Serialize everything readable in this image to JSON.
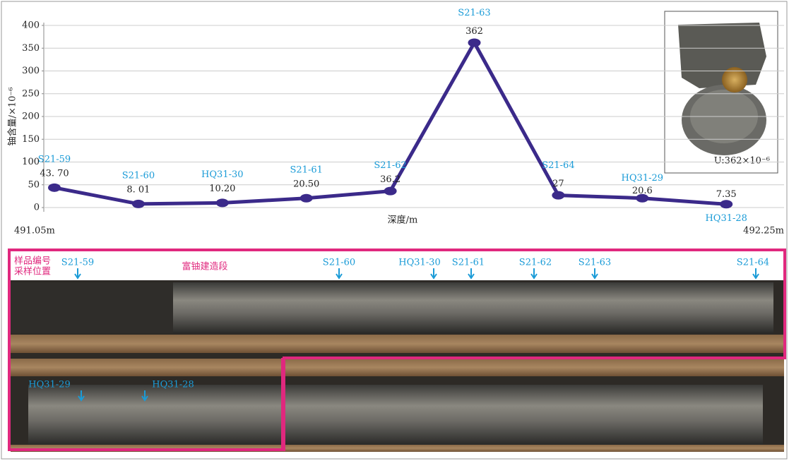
{
  "chart_data": {
    "type": "line",
    "y_label": "铀含量/×10⁻⁶",
    "x_label": "深度/m",
    "x_start_label": "491.05m",
    "x_end_label": "492.25m",
    "categories": [
      "S21-59",
      "S21-60",
      "HQ31-30",
      "S21-61",
      "S21-62",
      "S21-63",
      "S21-64",
      "HQ31-29",
      "HQ31-28"
    ],
    "series": [
      {
        "name": "铀含量",
        "color": "#3b2a8a",
        "values": [
          43.7,
          8.01,
          10.2,
          20.5,
          36.2,
          362,
          27,
          20.6,
          7.35
        ],
        "value_labels": [
          "43. 70",
          "8. 01",
          "10.20",
          "20.50",
          "36.2",
          "362",
          "27",
          "20.6",
          "7.35"
        ]
      }
    ],
    "ylim": [
      0,
      400
    ],
    "yticks": [
      0,
      50,
      100,
      150,
      200,
      250,
      300,
      350,
      400
    ],
    "grid": true,
    "inset_label": "U:362×10⁻⁶",
    "photo_labels": {
      "sample_id": "样品编号",
      "sample_position": "采样位置",
      "zone": "富铀建造段"
    }
  }
}
